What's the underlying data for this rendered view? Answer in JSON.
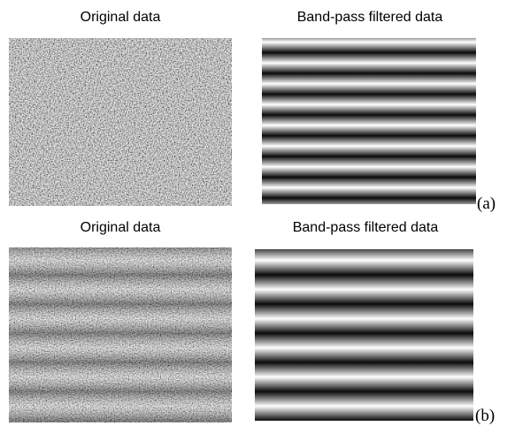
{
  "panels": [
    {
      "left_title": "Original data",
      "right_title": "Band-pass filtered data",
      "label": "(a)"
    },
    {
      "left_title": "Original data",
      "right_title": "Band-pass filtered data",
      "label": "(b)"
    }
  ]
}
